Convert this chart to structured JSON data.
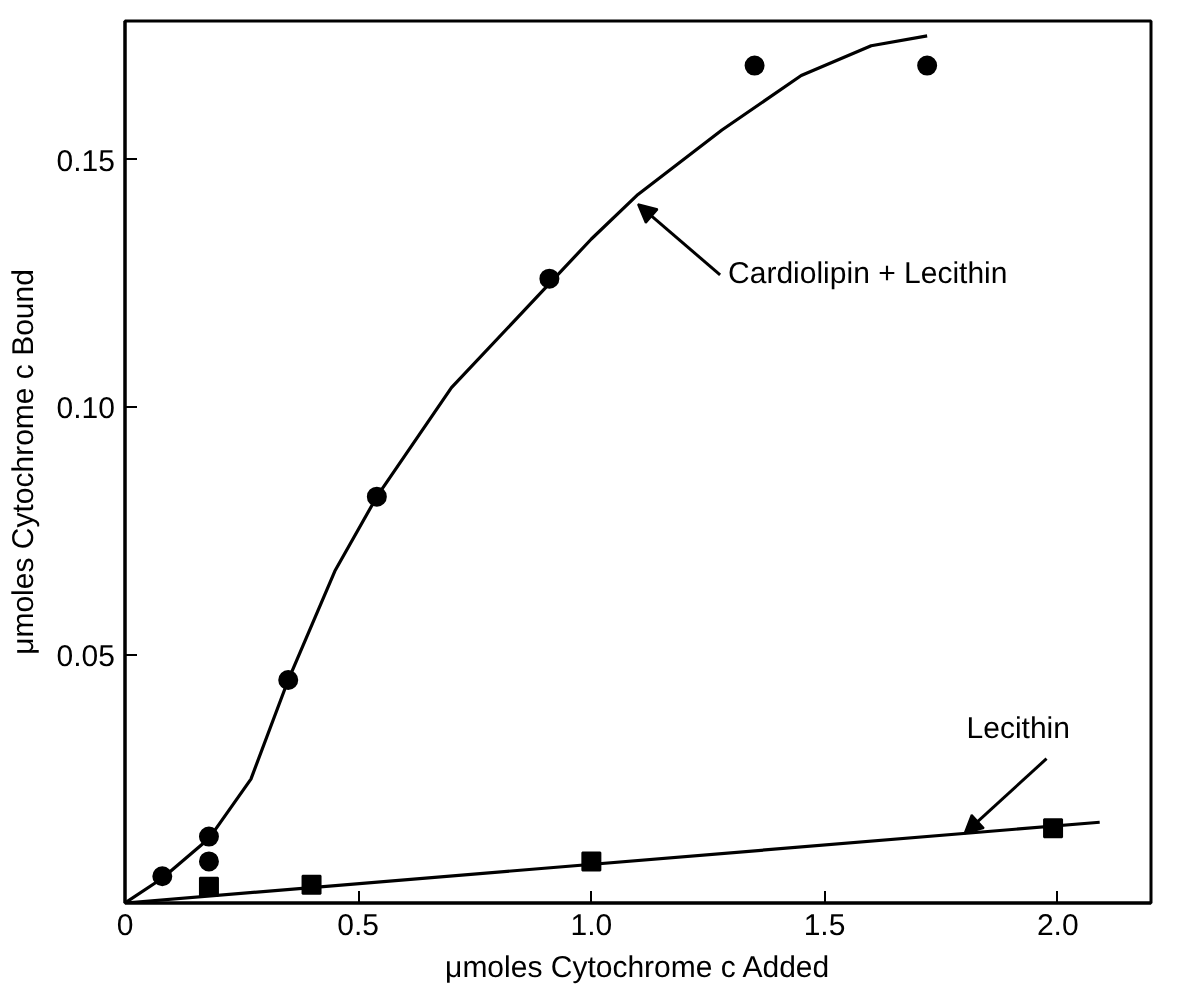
{
  "chart_data": {
    "type": "scatter",
    "xlabel": "μmoles Cytochrome c Added",
    "ylabel": "μmoles Cytochrome c Bound",
    "xlim": [
      0,
      2.2
    ],
    "ylim": [
      0,
      0.178
    ],
    "xticks": [
      0,
      0.5,
      {
        "value": 1,
        "label": "1.0"
      },
      1.5,
      {
        "value": 2,
        "label": "2.0"
      }
    ],
    "yticks": [
      0.05,
      {
        "value": 0.1,
        "label": "0.10"
      },
      0.15
    ],
    "grid": false,
    "series": [
      {
        "marker": "circle",
        "color": "#000000",
        "x": [
          0.08,
          0.18,
          0.18,
          0.35,
          0.54,
          0.91,
          1.35,
          1.72
        ],
        "values": [
          0.0054,
          0.0134,
          0.0084,
          0.045,
          0.082,
          0.126,
          0.169,
          0.169
        ]
      },
      {
        "marker": "square",
        "color": "#000000",
        "x": [
          0.18,
          0.4,
          1.0,
          1.99
        ],
        "values": [
          0.0033,
          0.0037,
          0.0084,
          0.0151
        ]
      },
      {
        "type": "line",
        "marker": "none",
        "line_style": "solid",
        "color": "#000000",
        "x": [
          0,
          0.08,
          0.18,
          0.27,
          0.35,
          0.45,
          0.54,
          0.7,
          0.84,
          1.0,
          1.1,
          1.28,
          1.45,
          1.6,
          1.72
        ],
        "values": [
          0,
          0.005,
          0.013,
          0.025,
          0.045,
          0.067,
          0.082,
          0.104,
          0.118,
          0.134,
          0.143,
          0.156,
          0.167,
          0.173,
          0.175
        ]
      },
      {
        "type": "line",
        "marker": "none",
        "line_style": "solid",
        "color": "#000000",
        "x": [
          0,
          2.09
        ],
        "values": [
          0,
          0.0163
        ]
      }
    ],
    "annotations": [
      {
        "text": "Cardiolipin + Lecithin",
        "x": 1.1,
        "y": 0.141
      },
      {
        "text": "Lecithin",
        "x": 1.8,
        "y": 0.014
      }
    ]
  }
}
